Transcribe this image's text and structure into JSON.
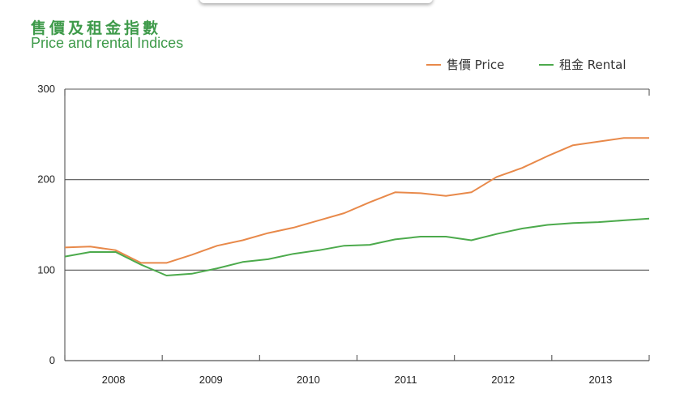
{
  "header": {
    "title_zh": "售價及租金指數",
    "title_en": "Price and rental Indices"
  },
  "chart_data": {
    "type": "line",
    "title": "售價及租金指數 Price and rental Indices",
    "ylim": [
      0,
      300
    ],
    "y_ticks": [
      "0",
      "100",
      "200",
      "300"
    ],
    "x_year_labels": [
      "2008",
      "2009",
      "2010",
      "2011",
      "2012",
      "2013"
    ],
    "x": [
      0,
      0.5,
      1,
      1.5,
      2,
      2.5,
      3,
      3.5,
      4,
      4.5,
      5,
      5.5,
      6,
      6.5,
      7,
      7.5,
      8,
      8.5,
      9,
      9.5,
      10,
      10.5,
      11,
      11.5
    ],
    "grid": "horizontal",
    "legend_position": "top-right",
    "colors": {
      "price": "#e8894a",
      "rental": "#4caa4c",
      "grid": "#555555",
      "axis": "#555555"
    },
    "series": [
      {
        "name": "售價 Price",
        "color": "#e8894a",
        "values": [
          125,
          126,
          122,
          108,
          108,
          117,
          127,
          133,
          141,
          147,
          155,
          163,
          175,
          186,
          185,
          182,
          186,
          203,
          213,
          226,
          238,
          242,
          246,
          246
        ]
      },
      {
        "name": "租金 Rental",
        "color": "#4caa4c",
        "values": [
          115,
          120,
          120,
          106,
          94,
          96,
          102,
          109,
          112,
          118,
          122,
          127,
          128,
          134,
          137,
          137,
          133,
          140,
          146,
          150,
          152,
          153,
          155,
          157
        ]
      }
    ]
  }
}
